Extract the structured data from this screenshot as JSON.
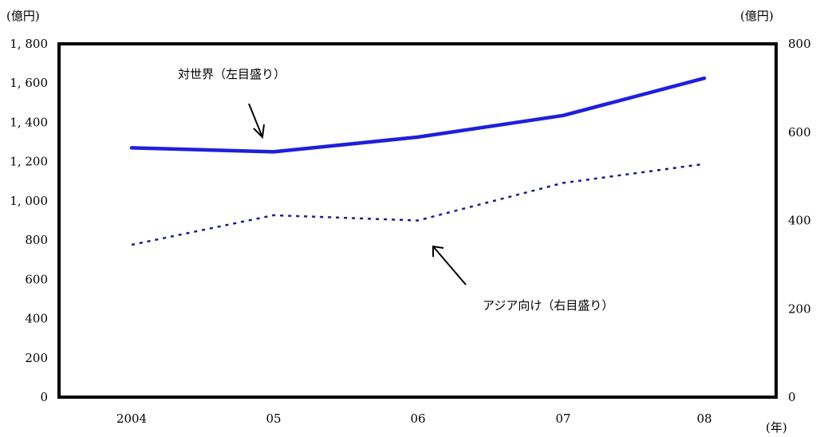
{
  "chart_data": {
    "type": "line",
    "categories": [
      "2004",
      "05",
      "06",
      "07",
      "08"
    ],
    "x_unit": "(年)",
    "left_axis": {
      "unit": "(億円)",
      "ylim": [
        0,
        1800
      ],
      "ticks": [
        0,
        200,
        400,
        600,
        800,
        1000,
        1200,
        1400,
        1600,
        1800
      ],
      "tick_labels": [
        "0",
        "200",
        "400",
        "600",
        "800",
        "1, 000",
        "1, 200",
        "1, 400",
        "1, 600",
        "1, 800"
      ]
    },
    "right_axis": {
      "unit": "(億円)",
      "ylim": [
        0,
        800
      ],
      "ticks": [
        0,
        200,
        400,
        600,
        800
      ],
      "tick_labels": [
        "0",
        "200",
        "400",
        "600",
        "800"
      ]
    },
    "series": [
      {
        "name": "対世界（左目盛り）",
        "axis": "left",
        "style": "solid",
        "color": "#1f1fdc",
        "values": [
          1270,
          1250,
          1325,
          1435,
          1625
        ]
      },
      {
        "name": "アジア向け（右目盛り）",
        "axis": "right",
        "style": "dotted",
        "color": "#1a1a8c",
        "values": [
          345,
          412,
          400,
          485,
          528
        ]
      }
    ],
    "grid": false,
    "legend": "none"
  }
}
